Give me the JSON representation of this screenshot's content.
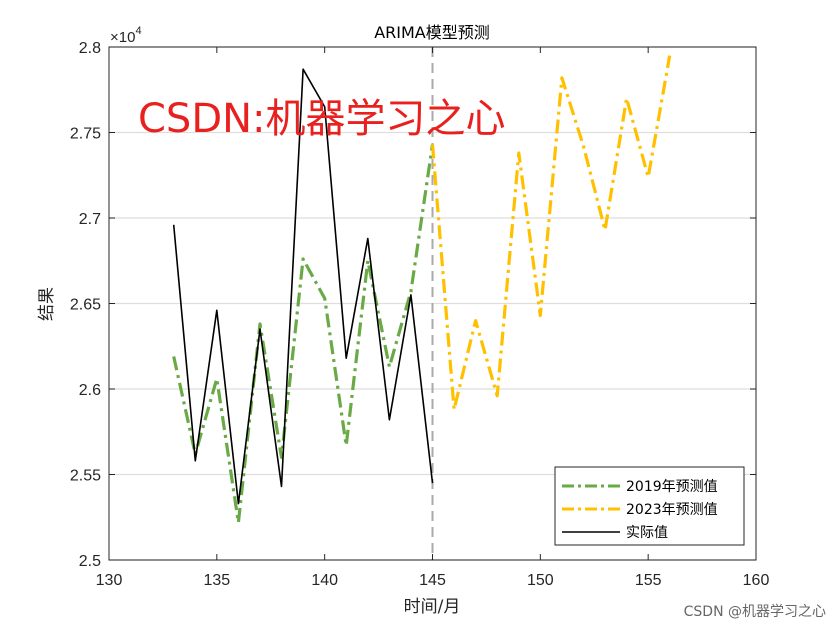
{
  "chart_data": {
    "type": "line",
    "title": "ARIMA模型预测",
    "xlabel": "时间/月",
    "ylabel": "结果",
    "xlim": [
      130,
      160
    ],
    "ylim": [
      25000,
      28000
    ],
    "x_ticks": [
      130,
      135,
      140,
      145,
      150,
      155,
      160
    ],
    "x_tick_labels": [
      "130",
      "135",
      "140",
      "145",
      "150",
      "155",
      "160"
    ],
    "y_ticks": [
      25000,
      25500,
      26000,
      26500,
      27000,
      27500,
      28000
    ],
    "y_tick_labels": [
      "2.5",
      "2.55",
      "2.6",
      "2.65",
      "2.7",
      "2.75",
      "2.8"
    ],
    "y_exponent_label": "×10",
    "y_exponent_power": "4",
    "grid_y": true,
    "vertical_line_x": 145,
    "series": [
      {
        "name": "2019年预测值",
        "color": "#6aaa46",
        "style": "dashdot",
        "x": [
          133,
          134,
          135,
          136,
          137,
          138,
          139,
          140,
          141,
          142,
          143,
          144,
          145
        ],
        "values": [
          26190,
          25620,
          26060,
          25220,
          26380,
          25600,
          26760,
          26530,
          25670,
          26750,
          26130,
          26570,
          27430
        ]
      },
      {
        "name": "2023年预测值",
        "color": "#ffc000",
        "style": "dashdot",
        "x": [
          145,
          146,
          147,
          148,
          149,
          150,
          151,
          152,
          153,
          154,
          155,
          156
        ],
        "values": [
          27430,
          25880,
          26400,
          25960,
          27380,
          26430,
          27820,
          27420,
          26930,
          27700,
          27240,
          27950
        ]
      },
      {
        "name": "实际值",
        "color": "#000000",
        "style": "solid",
        "x": [
          133,
          134,
          135,
          136,
          137,
          138,
          139,
          140,
          141,
          142,
          143,
          144,
          145
        ],
        "values": [
          26960,
          25580,
          26460,
          25330,
          26350,
          25430,
          27870,
          27650,
          26180,
          26880,
          25820,
          26550,
          25450
        ]
      }
    ],
    "legend_position": "bottom-right",
    "annotation": "CSDN:机器学习之心"
  },
  "watermark_corner": "CSDN @机器学习之心",
  "colors": {
    "grid": "#dedede",
    "axis": "#262626",
    "vline": "#aaaaaa",
    "annotation": "#e8211f"
  }
}
